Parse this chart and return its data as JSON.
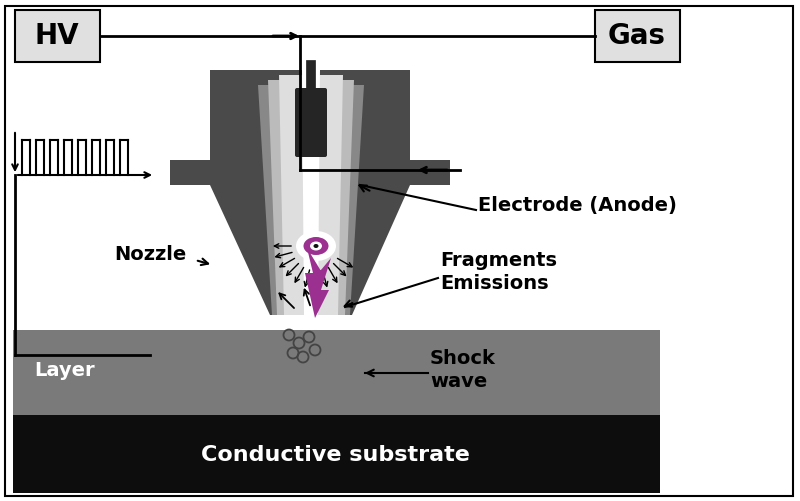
{
  "bg_color": "#ffffff",
  "border_color": "#000000",
  "dark_gray": "#4a4a4a",
  "substrate_black": "#0d0d0d",
  "layer_gray": "#7a7a7a",
  "purple": "#9b3090",
  "white": "#ffffff",
  "text_color": "#000000",
  "text_white": "#ffffff",
  "labels": {
    "HV": "HV",
    "Gas": "Gas",
    "Electrode": "Electrode (Anode)",
    "Nozzle": "Nozzle",
    "Fragments": "Fragments\nEmissions",
    "ShockWave": "Shock\nwave",
    "Layer": "Layer",
    "Substrate": "Conductive substrate"
  },
  "fig_width": 8.0,
  "fig_height": 5.01
}
